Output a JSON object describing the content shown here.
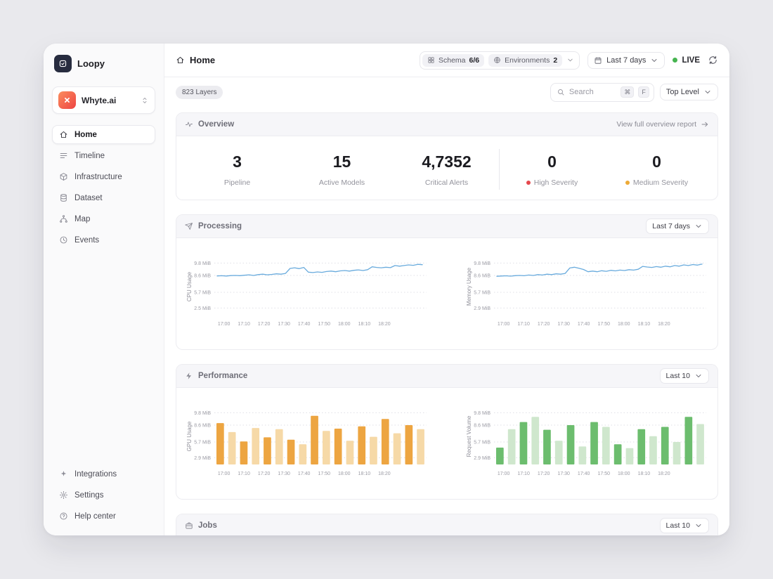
{
  "app": {
    "logo_text": "Loopy",
    "workspace_name": "Whyte.ai"
  },
  "icons": {
    "logo": "loopy-mark-icon",
    "workspace": "whyte-mark-icon",
    "workspace_toggle": "chevron-updown-icon",
    "page": "home-icon",
    "schema": "grid-icon",
    "environments": "globe-icon",
    "date": "calendar-icon",
    "dropdown": "chevron-down-icon",
    "refresh": "refresh-icon",
    "search": "search-icon",
    "overview": "activity-icon",
    "report_arrow": "arrow-right-icon"
  },
  "sidebar": {
    "nav": [
      {
        "label": "Home",
        "icon": "home-icon",
        "active": true
      },
      {
        "label": "Timeline",
        "icon": "timeline-icon",
        "active": false
      },
      {
        "label": "Infrastructure",
        "icon": "infrastructure-icon",
        "active": false
      },
      {
        "label": "Dataset",
        "icon": "dataset-icon",
        "active": false
      },
      {
        "label": "Map",
        "icon": "map-icon",
        "active": false
      },
      {
        "label": "Events",
        "icon": "events-icon",
        "active": false
      }
    ],
    "footer_nav": [
      {
        "label": "Integrations",
        "icon": "integrations-icon",
        "active": false
      },
      {
        "label": "Settings",
        "icon": "settings-icon",
        "active": false
      },
      {
        "label": "Help center",
        "icon": "help-icon",
        "active": false
      }
    ]
  },
  "header": {
    "title": "Home",
    "schema": {
      "label": "Schema",
      "value": "6/6"
    },
    "environments": {
      "label": "Environments",
      "value": "2"
    },
    "date_range": "Last 7 days",
    "live": "LIVE"
  },
  "toolbar": {
    "layers_badge": "823 Layers",
    "search_placeholder": "Search",
    "kbd": [
      "⌘",
      "F"
    ],
    "level_select": "Top Level"
  },
  "overview": {
    "title": "Overview",
    "report_link": "View full overview report",
    "stats": [
      {
        "value": "3",
        "label": "Pipeline",
        "dot": null
      },
      {
        "value": "15",
        "label": "Active Models",
        "dot": null
      },
      {
        "value": "4,7352",
        "label": "Critical Alerts",
        "dot": null
      },
      {
        "value": "0",
        "label": "High Severity",
        "dot": "#e5484d"
      },
      {
        "value": "0",
        "label": "Medium Severity",
        "dot": "#edaa37"
      }
    ]
  },
  "sections": {
    "processing": {
      "title": "Processing",
      "icon": "rocket-icon",
      "range": "Last 7 days"
    },
    "performance": {
      "title": "Performance",
      "icon": "bolt-icon",
      "range": "Last 10"
    },
    "jobs": {
      "title": "Jobs",
      "icon": "briefcase-icon",
      "range": "Last 10"
    }
  },
  "colors": {
    "accent_line": "#69abdd",
    "bar_orange_dark": "#eda541",
    "bar_orange_light": "#f6d9a7",
    "bar_green_dark": "#6cbd6e",
    "bar_green_light": "#cfe7cd",
    "live_dot": "#46b450",
    "high_severity_dot": "#e5484d",
    "medium_severity_dot": "#edaa37"
  },
  "chart_data": [
    {
      "type": "line",
      "section": "processing",
      "name": "cpu-usage",
      "ylabel": "CPU Usage",
      "ytick_labels": [
        "9.8 MiB",
        "8.6 MiB",
        "5.7 MiB",
        "2.5 MiB"
      ],
      "ytick_values": [
        9.8,
        8.6,
        5.7,
        2.5
      ],
      "xticks": [
        "17:00",
        "17:10",
        "17:20",
        "17:30",
        "17:40",
        "17:50",
        "18:00",
        "18:10",
        "18:20"
      ],
      "color": "#69abdd",
      "values": [
        8.52,
        8.55,
        8.5,
        8.58,
        8.6,
        8.56,
        8.62,
        8.66,
        8.6,
        8.68,
        8.72,
        8.66,
        8.7,
        8.76,
        8.72,
        8.8,
        9.28,
        9.34,
        9.26,
        9.38,
        8.92,
        8.88,
        8.94,
        8.9,
        8.98,
        9.02,
        8.96,
        9.04,
        9.08,
        9.02,
        9.1,
        9.14,
        9.08,
        9.16,
        9.44,
        9.38,
        9.34,
        9.4,
        9.36,
        9.56,
        9.5,
        9.56,
        9.62,
        9.58,
        9.68,
        9.64
      ]
    },
    {
      "type": "line",
      "section": "processing",
      "name": "memory-usage",
      "ylabel": "Memory Usage",
      "ytick_labels": [
        "9.8 MiB",
        "8.6 MiB",
        "5.7 MiB",
        "2.9 MiB"
      ],
      "ytick_values": [
        9.8,
        8.6,
        5.7,
        2.9
      ],
      "xticks": [
        "17:00",
        "17:10",
        "17:20",
        "17:30",
        "17:40",
        "17:50",
        "18:00",
        "18:10",
        "18:20"
      ],
      "color": "#69abdd",
      "values": [
        8.46,
        8.5,
        8.54,
        8.48,
        8.56,
        8.6,
        8.55,
        8.64,
        8.6,
        8.68,
        8.64,
        8.72,
        8.68,
        8.76,
        8.72,
        8.8,
        9.32,
        9.4,
        9.3,
        9.18,
        8.96,
        9.02,
        8.96,
        9.06,
        9.0,
        9.1,
        9.04,
        9.12,
        9.08,
        9.16,
        9.12,
        9.2,
        9.48,
        9.42,
        9.38,
        9.46,
        9.4,
        9.5,
        9.44,
        9.56,
        9.5,
        9.62,
        9.56,
        9.66,
        9.6,
        9.7
      ]
    },
    {
      "type": "bar",
      "section": "performance",
      "name": "gpu-usage",
      "ylabel": "GPU Usage",
      "ytick_labels": [
        "9.8 MiB",
        "8.6 MiB",
        "5.7 MiB",
        "2.9 MiB"
      ],
      "ytick_values": [
        9.8,
        8.6,
        5.7,
        2.9
      ],
      "xticks": [
        "17:00",
        "17:10",
        "17:20",
        "17:30",
        "17:40",
        "17:50",
        "18:00",
        "18:10",
        "18:20"
      ],
      "color_dark": "#eda541",
      "color_light": "#f6d9a7",
      "values": [
        8.8,
        7.4,
        5.8,
        8.1,
        6.5,
        7.9,
        6.1,
        5.3,
        9.5,
        7.6,
        8.0,
        5.9,
        8.4,
        6.6,
        9.2,
        7.2,
        8.6,
        7.9
      ]
    },
    {
      "type": "bar",
      "section": "performance",
      "name": "request-volume",
      "ylabel": "Request Volume",
      "ytick_labels": [
        "9.8 MiB",
        "8.6 MiB",
        "5.7 MiB",
        "2.9 MiB"
      ],
      "ytick_values": [
        9.8,
        8.6,
        5.7,
        2.9
      ],
      "xticks": [
        "17:00",
        "17:10",
        "17:20",
        "17:30",
        "17:40",
        "17:50",
        "18:00",
        "18:10",
        "18:20"
      ],
      "color_dark": "#6cbd6e",
      "color_light": "#cfe7cd",
      "values": [
        4.7,
        7.9,
        8.9,
        9.4,
        7.8,
        5.9,
        8.6,
        4.9,
        8.9,
        8.3,
        5.3,
        4.6,
        7.9,
        6.7,
        8.3,
        5.7,
        9.4,
        8.7
      ]
    }
  ]
}
